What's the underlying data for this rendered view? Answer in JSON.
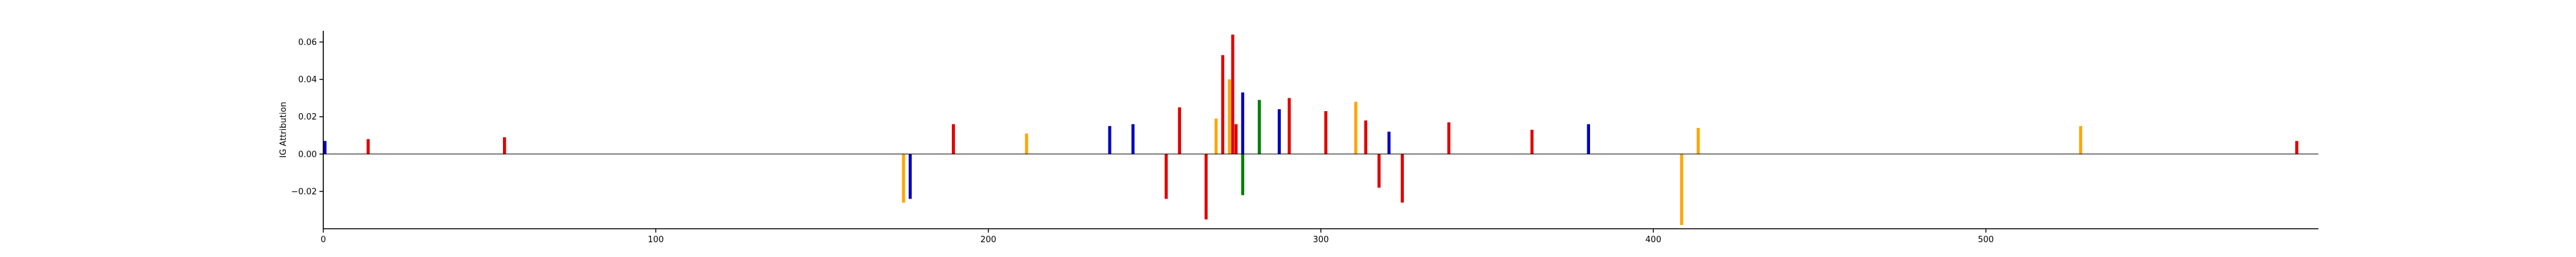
{
  "chart_data": {
    "type": "bar",
    "subtype": "sequence-logo attribution",
    "title": "",
    "xlabel": "",
    "ylabel": "IG Attribution",
    "xlim": [
      0,
      600
    ],
    "ylim": [
      -0.04,
      0.066
    ],
    "x_ticks": [
      "0",
      "100",
      "200",
      "300",
      "400",
      "500"
    ],
    "y_ticks": [
      "−0.02",
      "0.00",
      "0.02",
      "0.04",
      "0.06"
    ],
    "y_tick_values": [
      -0.02,
      0.0,
      0.02,
      0.04,
      0.06
    ],
    "grid": false,
    "legend": "none",
    "spines": [
      "left",
      "bottom"
    ],
    "base_colors": {
      "A": "#008000",
      "C": "#0000c0",
      "G": "#ffa500",
      "T": "#e00000"
    },
    "key_positions": [
      {
        "pos": 0,
        "base": "C",
        "value": 0.007
      },
      {
        "pos": 13,
        "base": "T",
        "value": 0.008
      },
      {
        "pos": 54,
        "base": "T",
        "value": 0.009
      },
      {
        "pos": 174,
        "base": "G",
        "value": -0.026
      },
      {
        "pos": 176,
        "base": "C",
        "value": -0.024
      },
      {
        "pos": 189,
        "base": "T",
        "value": 0.016
      },
      {
        "pos": 211,
        "base": "G",
        "value": 0.011
      },
      {
        "pos": 236,
        "base": "C",
        "value": 0.015
      },
      {
        "pos": 243,
        "base": "C",
        "value": 0.016
      },
      {
        "pos": 253,
        "base": "T",
        "value": -0.024
      },
      {
        "pos": 257,
        "base": "T",
        "value": 0.025
      },
      {
        "pos": 265,
        "base": "T",
        "value": -0.035
      },
      {
        "pos": 268,
        "base": "G",
        "value": 0.019
      },
      {
        "pos": 270,
        "base": "T",
        "value": 0.053
      },
      {
        "pos": 272,
        "base": "G",
        "value": 0.04
      },
      {
        "pos": 273,
        "base": "T",
        "value": 0.064
      },
      {
        "pos": 274,
        "base": "T",
        "value": 0.016
      },
      {
        "pos": 276,
        "base": "C",
        "value": 0.033
      },
      {
        "pos": 276,
        "base": "A",
        "value": -0.022
      },
      {
        "pos": 281,
        "base": "A",
        "value": 0.029
      },
      {
        "pos": 287,
        "base": "C",
        "value": 0.024
      },
      {
        "pos": 290,
        "base": "T",
        "value": 0.03
      },
      {
        "pos": 301,
        "base": "T",
        "value": 0.023
      },
      {
        "pos": 310,
        "base": "G",
        "value": 0.028
      },
      {
        "pos": 313,
        "base": "T",
        "value": 0.018
      },
      {
        "pos": 317,
        "base": "T",
        "value": -0.018
      },
      {
        "pos": 320,
        "base": "C",
        "value": 0.012
      },
      {
        "pos": 324,
        "base": "T",
        "value": -0.026
      },
      {
        "pos": 338,
        "base": "T",
        "value": 0.017
      },
      {
        "pos": 363,
        "base": "T",
        "value": 0.013
      },
      {
        "pos": 380,
        "base": "C",
        "value": 0.016
      },
      {
        "pos": 408,
        "base": "G",
        "value": -0.038
      },
      {
        "pos": 413,
        "base": "G",
        "value": 0.014
      },
      {
        "pos": 528,
        "base": "G",
        "value": 0.015
      },
      {
        "pos": 593,
        "base": "T",
        "value": 0.007
      }
    ]
  }
}
